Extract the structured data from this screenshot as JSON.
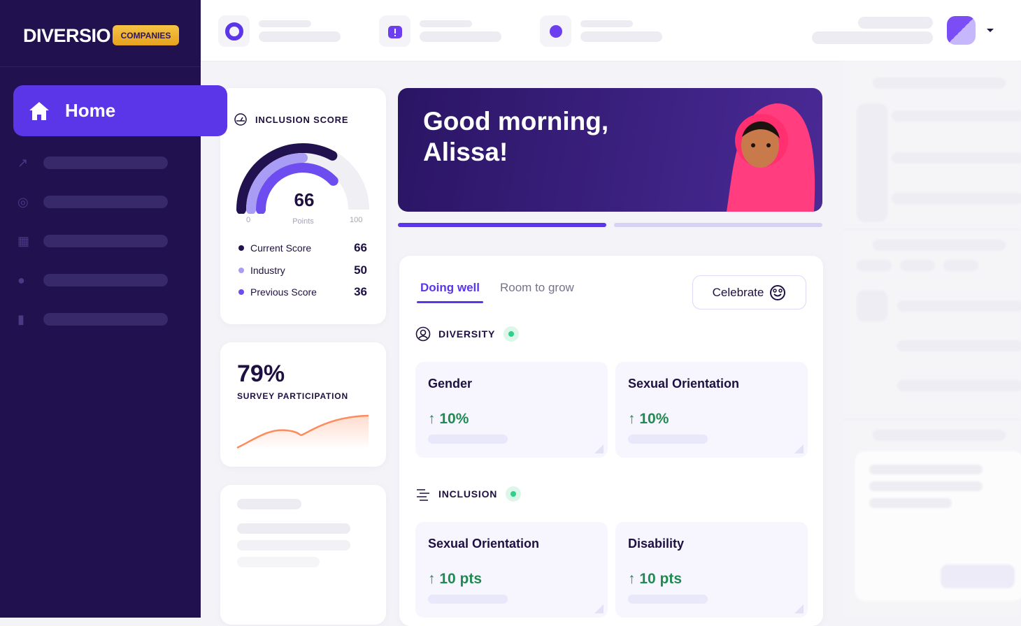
{
  "sidebar": {
    "logo": "DIVERSIO",
    "badge": "COMPANIES",
    "active_item": "Home",
    "icons": [
      "trend-icon",
      "target-icon",
      "grid-icon",
      "team-icon",
      "bookmark-icon"
    ]
  },
  "inclusion_score": {
    "title": "INCLUSION SCORE",
    "value": "66",
    "min": "0",
    "max": "100",
    "unit": "Points",
    "legend": [
      {
        "label": "Current Score",
        "value": "66",
        "color": "#21114f"
      },
      {
        "label": "Industry",
        "value": "50",
        "color": "#a99cf5"
      },
      {
        "label": "Previous Score",
        "value": "36",
        "color": "#6d4cf0"
      }
    ]
  },
  "survey": {
    "value": "79%",
    "label": "SURVEY PARTICIPATION"
  },
  "hero": {
    "greeting": "Good morning, Alissa!"
  },
  "colors": {
    "sidebar": "#21114f",
    "accent": "#5b36e8",
    "positive": "#218a52"
  },
  "insights": {
    "tabs": [
      "Doing well",
      "Room to grow"
    ],
    "active_tab": "Doing well",
    "celebrate": "Celebrate",
    "sections": [
      {
        "title": "DIVERSITY",
        "cards": [
          {
            "title": "Gender",
            "change": "10%"
          },
          {
            "title": "Sexual Orientation",
            "change": "10%"
          }
        ]
      },
      {
        "title": "INCLUSION",
        "cards": [
          {
            "title": "Sexual Orientation",
            "change": "10 pts"
          },
          {
            "title": "Disability",
            "change": "10 pts"
          }
        ]
      }
    ]
  }
}
